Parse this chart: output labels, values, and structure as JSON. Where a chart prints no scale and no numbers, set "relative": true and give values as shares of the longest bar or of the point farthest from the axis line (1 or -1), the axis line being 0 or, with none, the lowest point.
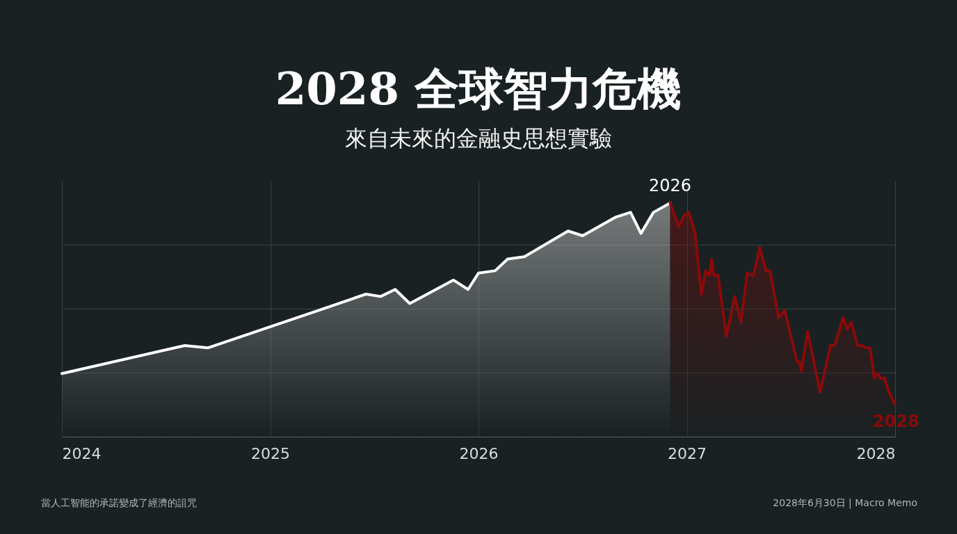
{
  "chart_data": {
    "type": "area",
    "title": "2028 全球智力危機",
    "subtitle": "來自未來的金融史思想實驗",
    "relative": true,
    "grid": true,
    "xlim": [
      2024,
      2028
    ],
    "xticks": [
      2024,
      2025,
      2026,
      2027,
      2028
    ],
    "series": [
      {
        "color": "#ffffff",
        "x": [
          2024.0,
          2024.59,
          2024.7,
          2025.23,
          2025.46,
          2025.53,
          2025.6,
          2025.67,
          2025.88,
          2025.95,
          2026.0,
          2026.08,
          2026.14,
          2026.22,
          2026.43,
          2026.5,
          2026.66,
          2026.73,
          2026.78,
          2026.84,
          2026.92
        ],
        "values": [
          0.27,
          0.39,
          0.38,
          0.54,
          0.61,
          0.6,
          0.63,
          0.57,
          0.67,
          0.63,
          0.7,
          0.71,
          0.76,
          0.77,
          0.88,
          0.86,
          0.94,
          0.96,
          0.87,
          0.96,
          1.0
        ]
      },
      {
        "color": "#8b0a0a",
        "x": [
          2026.92,
          2026.96,
          2026.99,
          2027.01,
          2027.04,
          2027.07,
          2027.09,
          2027.11,
          2027.12,
          2027.13,
          2027.15,
          2027.19,
          2027.23,
          2027.26,
          2027.29,
          2027.32,
          2027.35,
          2027.38,
          2027.4,
          2027.42,
          2027.44,
          2027.47,
          2027.53,
          2027.54,
          2027.55,
          2027.58,
          2027.64,
          2027.69,
          2027.71,
          2027.75,
          2027.77,
          2027.79,
          2027.82,
          2027.84,
          2027.86,
          2027.88,
          2027.9,
          2027.92,
          2027.93,
          2027.95,
          2027.97,
          2028.0
        ],
        "values": [
          1.0,
          0.9,
          0.95,
          0.96,
          0.87,
          0.61,
          0.71,
          0.69,
          0.76,
          0.69,
          0.69,
          0.43,
          0.6,
          0.49,
          0.7,
          0.69,
          0.81,
          0.71,
          0.71,
          0.61,
          0.51,
          0.54,
          0.32,
          0.32,
          0.28,
          0.45,
          0.19,
          0.39,
          0.39,
          0.51,
          0.46,
          0.49,
          0.39,
          0.39,
          0.38,
          0.38,
          0.25,
          0.27,
          0.25,
          0.25,
          0.19,
          0.14
        ]
      }
    ],
    "annotations": [
      {
        "text": "2026",
        "x": 2026.92,
        "y": 1.0
      },
      {
        "text": "2028",
        "x": 2028,
        "y": 0.14
      },
      "當人工智能的承諾變成了經濟的詛咒",
      "2028年6月30日 | Macro Memo"
    ]
  }
}
